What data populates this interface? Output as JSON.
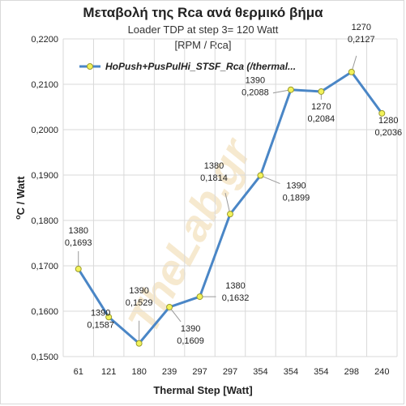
{
  "chart_data": {
    "type": "line",
    "title": "Μεταβολή της Rca ανά θερμικό βήμα",
    "subtitle": "Loader TDP at step 3= 120 Watt",
    "unit_label": "[RPM / Rca]",
    "ylabel_main": "C / Watt",
    "ylabel_sup": "o",
    "xlabel": "Thermal Step [Watt]",
    "categories": [
      "61",
      "121",
      "180",
      "239",
      "297",
      "297",
      "354",
      "354",
      "354",
      "298",
      "240"
    ],
    "series": [
      {
        "name": "HoPush+PusPulHi_STSF_Rca (/thermal...",
        "values": [
          0.1693,
          0.1587,
          0.1529,
          0.1609,
          0.1632,
          0.1814,
          0.1899,
          0.2088,
          0.2084,
          0.2127,
          0.2036
        ],
        "value_labels": [
          "0,1693",
          "0,1587",
          "0,1529",
          "0,1609",
          "0,1632",
          "0,1814",
          "0,1899",
          "0,2088",
          "0,2084",
          "0,2127",
          "0,2036"
        ],
        "rpm": [
          "1380",
          "1390",
          "1390",
          "1390",
          "1380",
          "1380",
          "1390",
          "1390",
          "1270",
          "1270",
          "1280"
        ],
        "color": "#4a86c6",
        "marker_color": "#f2f25a"
      }
    ],
    "ylim": [
      0.15,
      0.22
    ],
    "yticks": [
      "0,1500",
      "0,1600",
      "0,1700",
      "0,1800",
      "0,1900",
      "0,2000",
      "0,2100",
      "0,2200"
    ],
    "ytick_values": [
      0.15,
      0.16,
      0.17,
      0.18,
      0.19,
      0.2,
      0.21,
      0.22
    ],
    "grid": true,
    "legend": "top-left",
    "gridColor": "#d9d9d9",
    "watermark": "TheLab.gr"
  }
}
